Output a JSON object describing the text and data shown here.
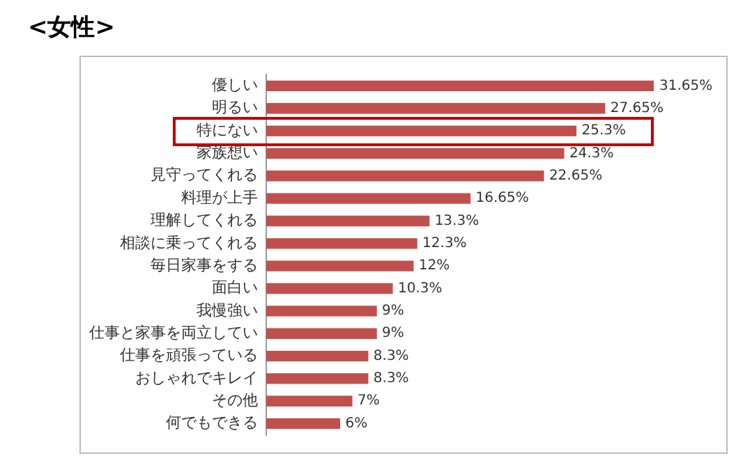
{
  "chart_data": {
    "type": "bar",
    "orientation": "horizontal",
    "title": "<女性>",
    "categories": [
      "優しい",
      "明るい",
      "特にない",
      "家族想い",
      "見守ってくれる",
      "料理が上手",
      "理解してくれる",
      "相談に乗ってくれる",
      "毎日家事をする",
      "面白い",
      "我慢強い",
      "仕事と家事を両立してい",
      "仕事を頑張っている",
      "おしゃれでキレイ",
      "その他",
      "何でもできる"
    ],
    "values": [
      31.65,
      27.65,
      25.3,
      24.3,
      22.65,
      16.65,
      13.3,
      12.3,
      12,
      10.3,
      9,
      9,
      8.3,
      8.3,
      7,
      6
    ],
    "value_labels": [
      "31.65%",
      "27.65%",
      "25.3%",
      "24.3%",
      "22.65%",
      "16.65%",
      "13.3%",
      "12.3%",
      "12%",
      "10.3%",
      "9%",
      "9%",
      "8.3%",
      "8.3%",
      "7%",
      "6%"
    ],
    "color": "#c0504d",
    "tick_labels": "y",
    "legend": false
  }
}
